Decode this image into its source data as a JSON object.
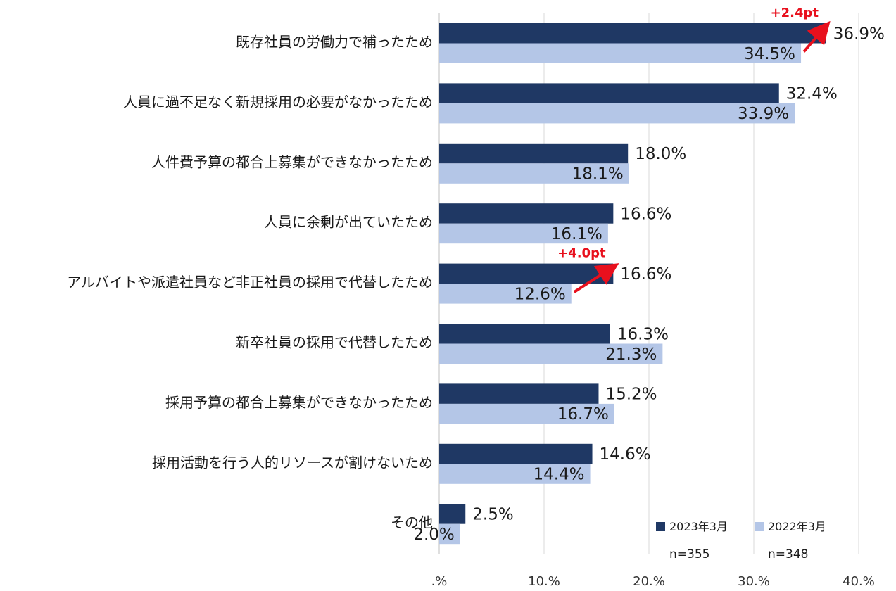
{
  "chart_data": {
    "type": "bar",
    "orientation": "horizontal",
    "categories": [
      "既存社員の労働力で補ったため",
      "人員に過不足なく新規採用の必要がなかったため",
      "人件費予算の都合上募集ができなかったため",
      "人員に余剰が出ていたため",
      "アルバイトや派遣社員など非正社員の採用で代替したため",
      "新卒社員の採用で代替したため",
      "採用予算の都合上募集ができなかったため",
      "採用活動を行う人的リソースが割けないため",
      "その他"
    ],
    "series": [
      {
        "name": "2023年3月",
        "color": "#1f3864",
        "values": [
          36.9,
          32.4,
          18.0,
          16.6,
          16.6,
          16.3,
          15.2,
          14.6,
          2.5
        ],
        "labels": [
          "36.9%",
          "32.4%",
          "18.0%",
          "16.6%",
          "16.6%",
          "16.3%",
          "15.2%",
          "14.6%",
          "2.5%"
        ]
      },
      {
        "name": "2022年3月",
        "color": "#b4c6e7",
        "values": [
          34.5,
          33.9,
          18.1,
          16.1,
          12.6,
          21.3,
          16.7,
          14.4,
          2.0
        ],
        "labels": [
          "34.5%",
          "33.9%",
          "18.1%",
          "16.1%",
          "12.6%",
          "21.3%",
          "16.7%",
          "14.4%",
          "2.0%"
        ]
      }
    ],
    "xlim": [
      0,
      40
    ],
    "xticks": [
      ".%",
      "10.%",
      "20.%",
      "30.%",
      "40.%"
    ],
    "grid": true,
    "legend": {
      "position": "bottom-right",
      "items": [
        {
          "label": "2023年3月",
          "n": "n=355",
          "color": "#1f3864"
        },
        {
          "label": "2022年3月",
          "n": "n=348",
          "color": "#b4c6e7"
        }
      ]
    },
    "annotations": [
      {
        "text": "+2.4pt",
        "category_index": 0,
        "color": "#e8101d"
      },
      {
        "text": "+4.0pt",
        "category_index": 4,
        "color": "#e8101d"
      }
    ]
  }
}
